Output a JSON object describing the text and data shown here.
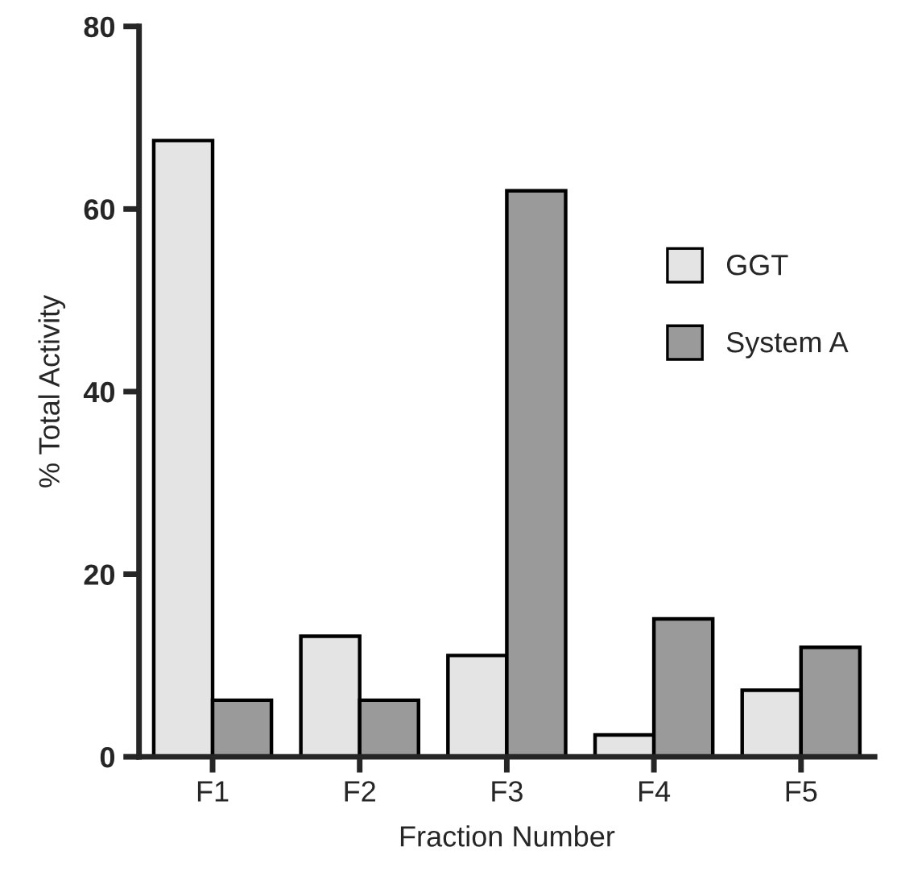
{
  "chart_data": {
    "type": "bar",
    "xlabel": "Fraction Number",
    "ylabel": "% Total Activity",
    "categories": [
      "F1",
      "F2",
      "F3",
      "F4",
      "F5"
    ],
    "series": [
      {
        "name": "GGT",
        "color": "#e4e4e4",
        "values": [
          67.5,
          13.2,
          11.1,
          2.4,
          7.3
        ]
      },
      {
        "name": "System A",
        "color": "#9a9a9a",
        "values": [
          6.2,
          6.2,
          62.0,
          15.1,
          12.0
        ]
      }
    ],
    "ylim": [
      0,
      80
    ],
    "yticks": [
      0,
      20,
      40,
      60,
      80
    ],
    "grid": false,
    "legend": "right"
  }
}
